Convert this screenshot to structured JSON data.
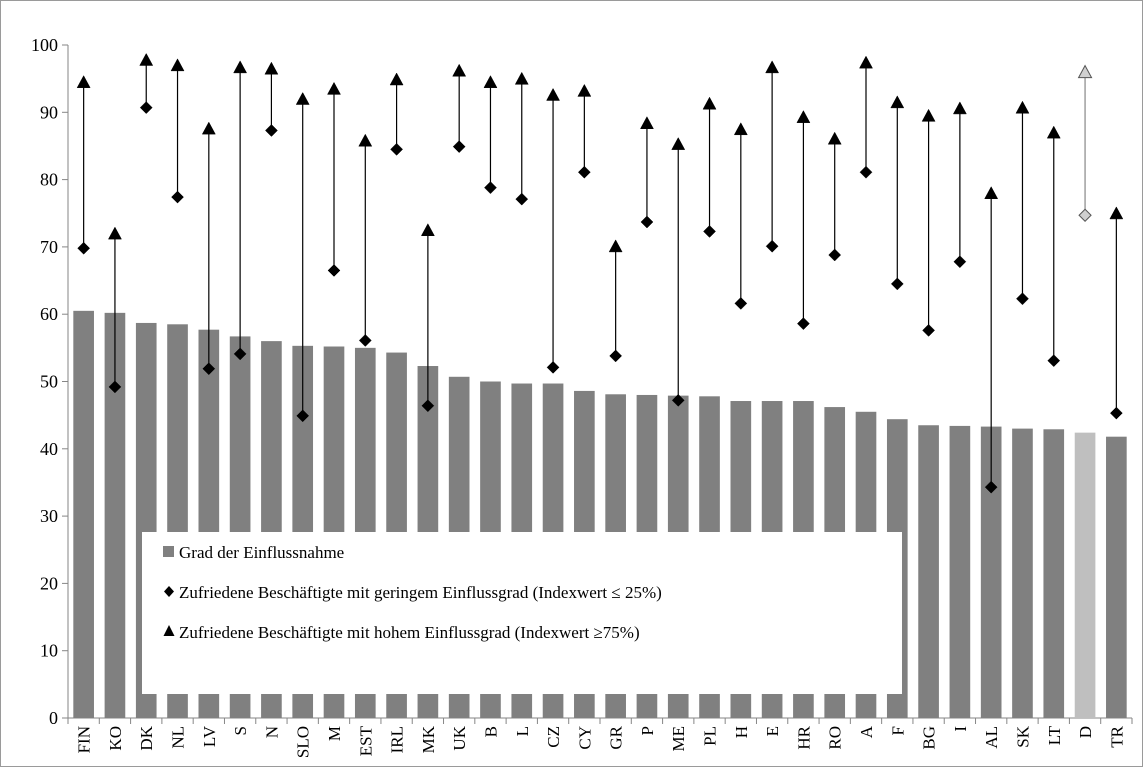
{
  "chart_data": {
    "type": "bar",
    "categories": [
      "FIN",
      "KO",
      "DK",
      "NL",
      "LV",
      "S",
      "N",
      "SLO",
      "M",
      "EST",
      "IRL",
      "MK",
      "UK",
      "B",
      "L",
      "CZ",
      "CY",
      "GR",
      "P",
      "ME",
      "PL",
      "H",
      "E",
      "HR",
      "RO",
      "A",
      "F",
      "BG",
      "I",
      "AL",
      "SK",
      "LT",
      "D",
      "TR"
    ],
    "series": [
      {
        "name": "Grad der Einflussnahme",
        "marker": "bar",
        "values": [
          60.5,
          60.2,
          58.7,
          58.5,
          57.7,
          56.7,
          56.0,
          55.3,
          55.2,
          55.0,
          54.3,
          52.3,
          50.7,
          50.0,
          49.7,
          49.7,
          48.6,
          48.1,
          48.0,
          47.9,
          47.8,
          47.1,
          47.1,
          47.1,
          46.2,
          45.5,
          44.4,
          43.5,
          43.4,
          43.3,
          43.0,
          42.9,
          42.4,
          41.8
        ]
      },
      {
        "name": "Zufriedene Beschäftigte mit geringem Einflussgrad (Indexwert ≤ 25%)",
        "marker": "diamond",
        "values": [
          69.8,
          49.2,
          90.7,
          77.4,
          51.9,
          54.1,
          87.3,
          44.9,
          66.5,
          56.1,
          84.5,
          46.4,
          84.9,
          78.8,
          77.1,
          52.1,
          81.1,
          53.8,
          73.7,
          47.2,
          72.3,
          61.6,
          70.1,
          58.6,
          68.8,
          81.1,
          64.5,
          57.6,
          67.8,
          34.3,
          62.3,
          53.1,
          74.7,
          45.3
        ]
      },
      {
        "name": "Zufriedene Beschäftigte mit hohem Einflussgrad (Indexwert ≥75%)",
        "marker": "triangle",
        "values": [
          94.4,
          71.9,
          97.7,
          96.9,
          87.5,
          96.6,
          96.4,
          91.9,
          93.4,
          85.7,
          94.8,
          72.4,
          96.1,
          94.4,
          94.9,
          92.5,
          93.1,
          70.0,
          88.3,
          85.2,
          91.2,
          87.4,
          96.6,
          89.2,
          86.0,
          97.3,
          91.4,
          89.4,
          90.5,
          77.9,
          90.6,
          86.9,
          95.9,
          74.9
        ]
      }
    ],
    "highlight_category": "D",
    "ylim": [
      0,
      100
    ],
    "yticks": [
      0,
      10,
      20,
      30,
      40,
      50,
      60,
      70,
      80,
      90,
      100
    ],
    "grid": false,
    "legend_position": "bottom-left inside",
    "colors": {
      "bar": "#808080",
      "bar_highlight": "#bfbfbf",
      "marker": "#000000",
      "marker_highlight": "#d0d0d0",
      "axis": "#868686"
    },
    "title": "",
    "xlabel": "",
    "ylabel": ""
  }
}
